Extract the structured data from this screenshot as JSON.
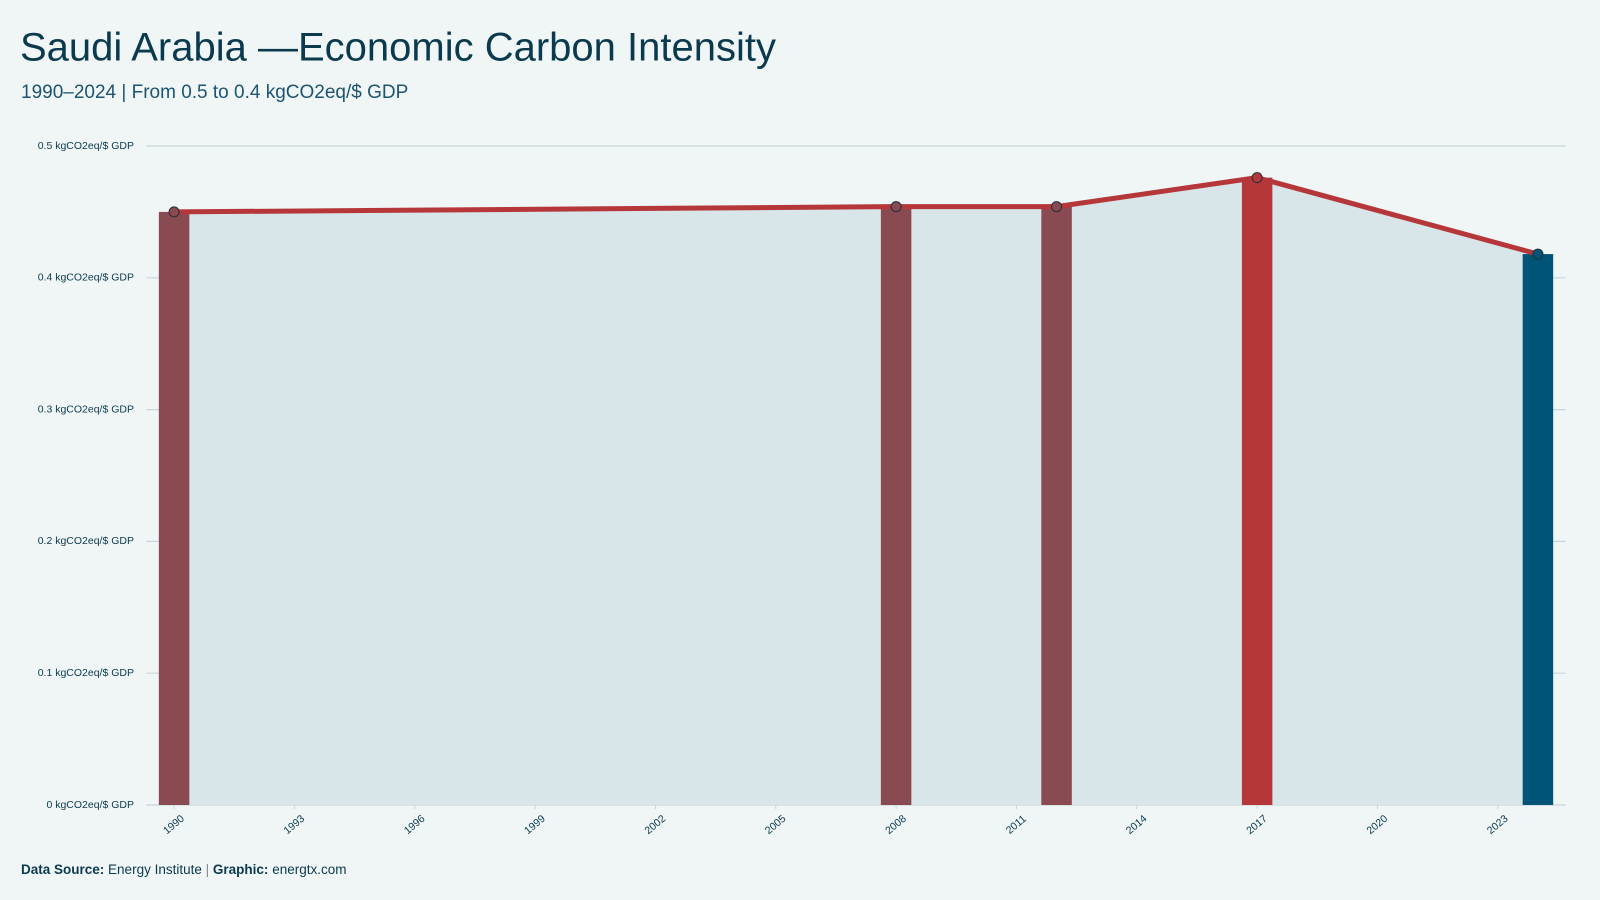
{
  "chart_data": {
    "type": "bar_line",
    "title": "Saudi Arabia —Economic Carbon Intensity",
    "subtitle": "1990–2024 | From 0.5 to 0.4 kgCO2eq/$ GDP",
    "x": [
      1990,
      2008,
      2012,
      2017,
      2024
    ],
    "series": [
      {
        "name": "Economic Carbon Intensity",
        "color": "#b5373a",
        "values": [
          0.45,
          0.454,
          0.454,
          0.476,
          0.418
        ]
      }
    ],
    "bar_colors": [
      "#8a4a52",
      "#8a4a52",
      "#8a4a52",
      "#b5373a",
      "#005478"
    ],
    "area_color": "#d8e5e9",
    "xlim": [
      1989.3,
      2024.7
    ],
    "xticks": [
      1990,
      1993,
      1996,
      1999,
      2002,
      2005,
      2008,
      2011,
      2014,
      2017,
      2020,
      2023
    ],
    "ylim": [
      0,
      0.5
    ],
    "yticks": [
      {
        "value": 0,
        "label": "0 kgCO2eq/$ GDP"
      },
      {
        "value": 0.1,
        "label": "0.1 kgCO2eq/$ GDP"
      },
      {
        "value": 0.2,
        "label": "0.2 kgCO2eq/$ GDP"
      },
      {
        "value": 0.3,
        "label": "0.3 kgCO2eq/$ GDP"
      },
      {
        "value": 0.4,
        "label": "0.4 kgCO2eq/$ GDP"
      },
      {
        "value": 0.5,
        "label": "0.5 kgCO2eq/$ GDP"
      }
    ],
    "grid": true,
    "footer": {
      "source_label": "Data Source:",
      "source": "Energy Institute",
      "separator": "|",
      "graphic_label": "Graphic:",
      "graphic": "energtx.com"
    }
  }
}
